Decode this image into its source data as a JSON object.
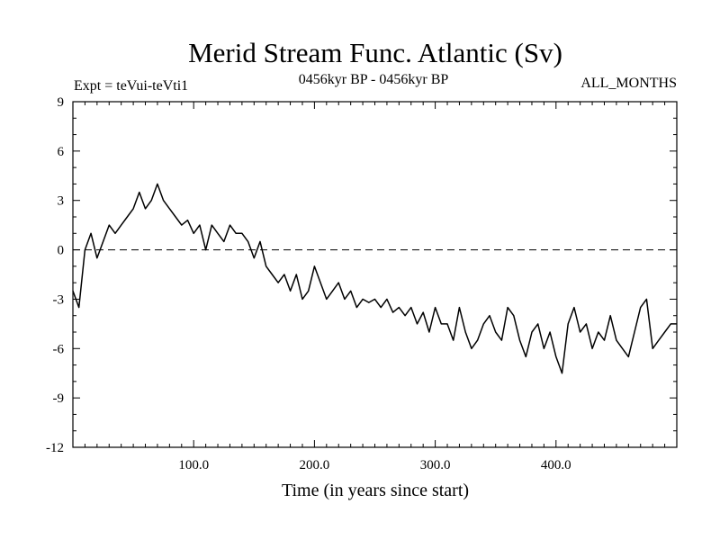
{
  "chart_data": {
    "type": "line",
    "title": "Merid Stream Func. Atlantic (Sv)",
    "subtitle_left": "Expt = teVui-teVti1",
    "subtitle_center": "0456kyr BP - 0456kyr BP",
    "subtitle_right": "ALL_MONTHS",
    "xlabel": "Time (in years since start)",
    "ylabel": "",
    "xlim": [
      0,
      500
    ],
    "ylim": [
      -12,
      9
    ],
    "xticks": [
      100,
      200,
      300,
      400
    ],
    "xtick_labels": [
      "100.0",
      "200.0",
      "300.0",
      "400.0"
    ],
    "yticks": [
      9,
      6,
      3,
      0,
      -3,
      -6,
      -9,
      -12
    ],
    "ytick_labels": [
      "9",
      "6",
      "3",
      "0",
      "-3",
      "-6",
      "-9",
      "-12"
    ],
    "reference_line": 0,
    "series": [
      {
        "name": "teVui-teVti1",
        "x": [
          0,
          5,
          10,
          15,
          20,
          25,
          30,
          35,
          40,
          45,
          50,
          55,
          60,
          65,
          70,
          75,
          80,
          85,
          90,
          95,
          100,
          105,
          110,
          115,
          120,
          125,
          130,
          135,
          140,
          145,
          150,
          155,
          160,
          165,
          170,
          175,
          180,
          185,
          190,
          195,
          200,
          205,
          210,
          215,
          220,
          225,
          230,
          235,
          240,
          245,
          250,
          255,
          260,
          265,
          270,
          275,
          280,
          285,
          290,
          295,
          300,
          305,
          310,
          315,
          320,
          325,
          330,
          335,
          340,
          345,
          350,
          355,
          360,
          365,
          370,
          375,
          380,
          385,
          390,
          395,
          400,
          405,
          410,
          415,
          420,
          425,
          430,
          435,
          440,
          445,
          450,
          455,
          460,
          465,
          470,
          475,
          480,
          485,
          490,
          495,
          500
        ],
        "values": [
          -2.5,
          -3.5,
          0.0,
          1.0,
          -0.5,
          0.5,
          1.5,
          1.0,
          1.5,
          2.0,
          2.5,
          3.5,
          2.5,
          3.0,
          4.0,
          3.0,
          2.5,
          2.0,
          1.5,
          1.8,
          1.0,
          1.5,
          0.0,
          1.5,
          1.0,
          0.5,
          1.5,
          1.0,
          1.0,
          0.5,
          -0.5,
          0.5,
          -1.0,
          -1.5,
          -2.0,
          -1.5,
          -2.5,
          -1.5,
          -3.0,
          -2.5,
          -1.0,
          -2.0,
          -3.0,
          -2.5,
          -2.0,
          -3.0,
          -2.5,
          -3.5,
          -3.0,
          -3.2,
          -3.0,
          -3.5,
          -3.0,
          -3.8,
          -3.5,
          -4.0,
          -3.5,
          -4.5,
          -3.8,
          -5.0,
          -3.5,
          -4.5,
          -4.5,
          -5.5,
          -3.5,
          -5.0,
          -6.0,
          -5.5,
          -4.5,
          -4.0,
          -5.0,
          -5.5,
          -3.5,
          -4.0,
          -5.5,
          -6.5,
          -5.0,
          -4.5,
          -6.0,
          -5.0,
          -6.5,
          -7.5,
          -4.5,
          -3.5,
          -5.0,
          -4.5,
          -6.0,
          -5.0,
          -5.5,
          -4.0,
          -5.5,
          -6.0,
          -6.5,
          -5.0,
          -3.5,
          -3.0,
          -6.0,
          -5.5,
          -5.0,
          -4.5,
          -4.5
        ]
      }
    ]
  }
}
